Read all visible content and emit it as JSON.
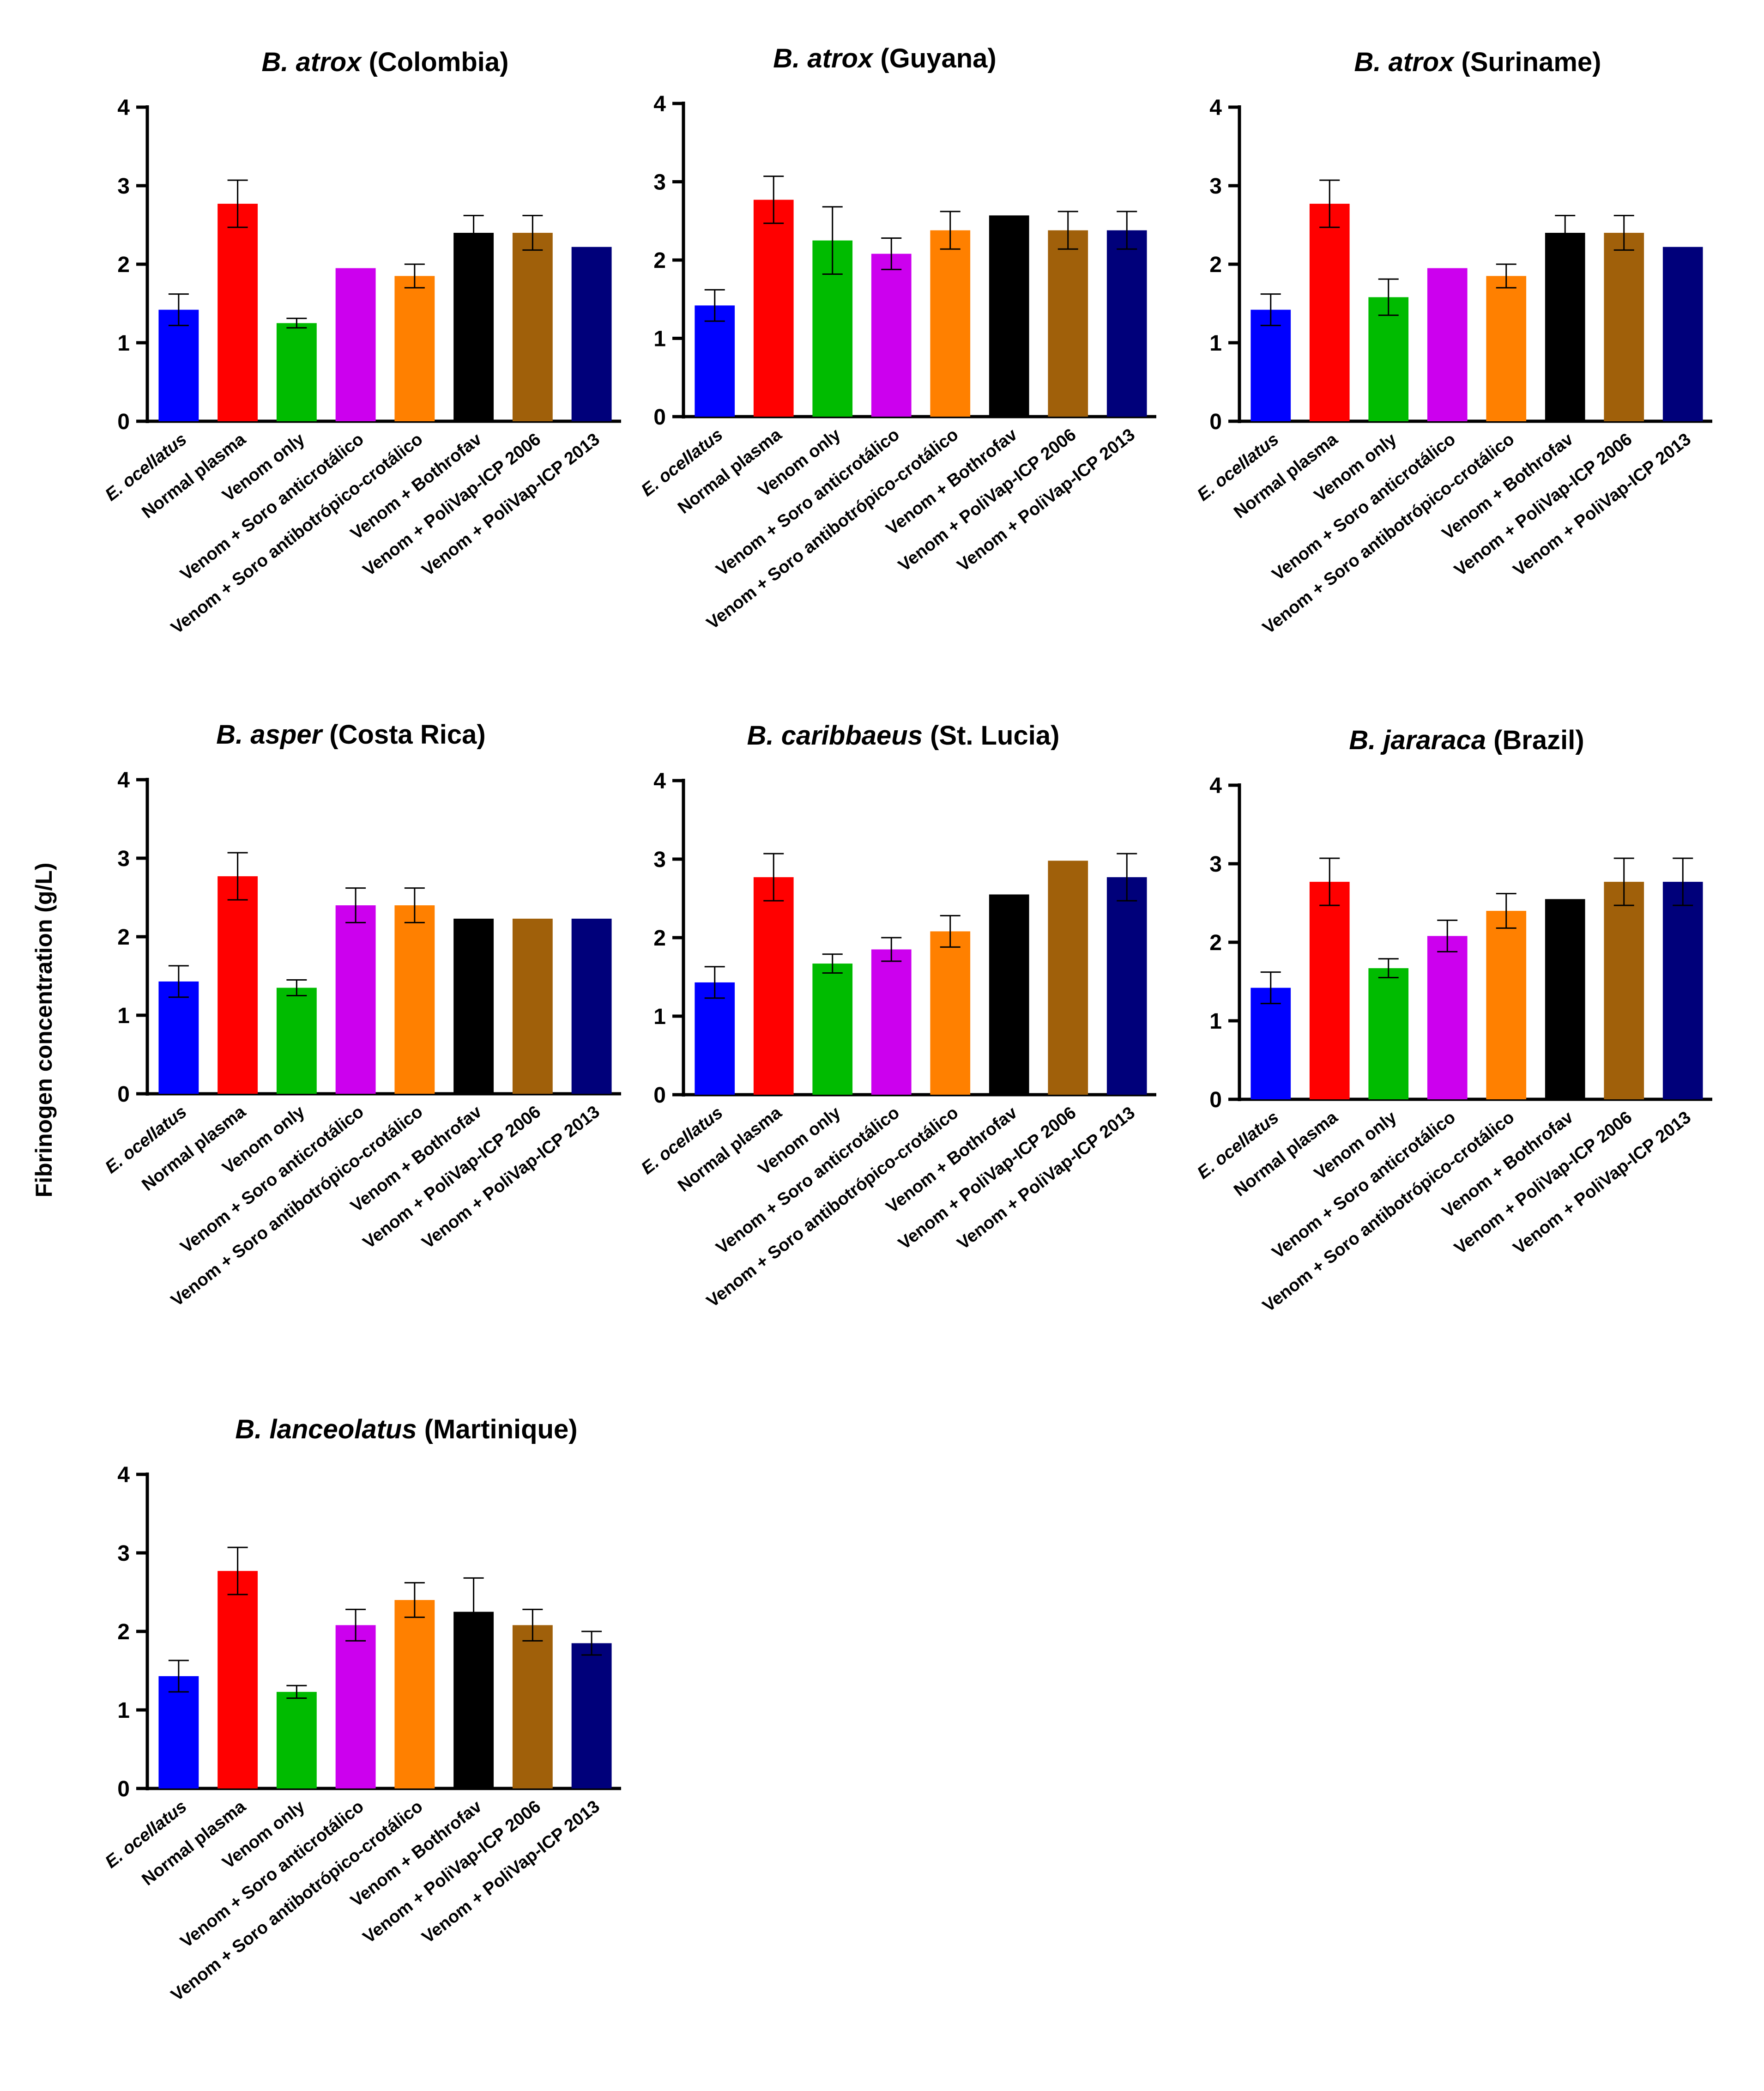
{
  "ylabel": "Fibrinogen concentration (g/L)",
  "categories": [
    {
      "label": "E. ocellatus",
      "italic": true,
      "color": "#0000ff"
    },
    {
      "label": "Normal plasma",
      "italic": false,
      "color": "#ff0000"
    },
    {
      "label": "Venom only",
      "italic": false,
      "color": "#00bb00"
    },
    {
      "label": "Venom + Soro anticrotálico",
      "italic": false,
      "color": "#cc00ee"
    },
    {
      "label": "Venom + Soro antibotrópico-crotálico",
      "italic": false,
      "color": "#ff8000"
    },
    {
      "label": "Venom + Bothrofav",
      "italic": false,
      "color": "#000000"
    },
    {
      "label": "Venom + PoliVap-ICP 2006",
      "italic": false,
      "color": "#a0600a"
    },
    {
      "label": "Venom + PoliVap-ICP 2013",
      "italic": false,
      "color": "#00007a"
    }
  ],
  "chart_data": [
    {
      "type": "bar",
      "title_species": "B. atrox",
      "title_region": "(Colombia)",
      "ylim": [
        0,
        4
      ],
      "yticks": [
        "0",
        "1",
        "2",
        "3",
        "4"
      ],
      "values": [
        1.42,
        2.77,
        1.25,
        1.95,
        1.85,
        2.4,
        2.4,
        2.22
      ],
      "errors": [
        0.2,
        0.3,
        0.06,
        0,
        0.15,
        0.22,
        0.22,
        0
      ]
    },
    {
      "type": "bar",
      "title_species": "B. atrox",
      "title_region": "(Guyana)",
      "ylim": [
        0,
        4
      ],
      "yticks": [
        "0",
        "1",
        "2",
        "3",
        "4"
      ],
      "values": [
        1.42,
        2.77,
        2.25,
        2.08,
        2.38,
        2.57,
        2.38,
        2.38
      ],
      "errors": [
        0.2,
        0.3,
        0.43,
        0.2,
        0.24,
        0,
        0.24,
        0.24
      ]
    },
    {
      "type": "bar",
      "title_species": "B. atrox",
      "title_region": "(Suriname)",
      "ylim": [
        0,
        4
      ],
      "yticks": [
        "0",
        "1",
        "2",
        "3",
        "4"
      ],
      "values": [
        1.42,
        2.77,
        1.58,
        1.95,
        1.85,
        2.4,
        2.4,
        2.22
      ],
      "errors": [
        0.2,
        0.3,
        0.23,
        0,
        0.15,
        0.22,
        0.22,
        0
      ]
    },
    {
      "type": "bar",
      "title_species": "B. asper",
      "title_region": "(Costa Rica)",
      "ylim": [
        0,
        4
      ],
      "yticks": [
        "0",
        "1",
        "2",
        "3",
        "4"
      ],
      "values": [
        1.43,
        2.77,
        1.35,
        2.4,
        2.4,
        2.23,
        2.23,
        2.23
      ],
      "errors": [
        0.2,
        0.3,
        0.1,
        0.22,
        0.22,
        0,
        0,
        0
      ]
    },
    {
      "type": "bar",
      "title_species": "B. caribbaeus",
      "title_region": "(St. Lucia)",
      "ylim": [
        0,
        4
      ],
      "yticks": [
        "0",
        "1",
        "2",
        "3",
        "4"
      ],
      "values": [
        1.43,
        2.77,
        1.67,
        1.85,
        2.08,
        2.55,
        2.98,
        2.77
      ],
      "errors": [
        0.2,
        0.3,
        0.12,
        0.15,
        0.2,
        0,
        0,
        0.3
      ]
    },
    {
      "type": "bar",
      "title_species": "B. jararaca",
      "title_region": "(Brazil)",
      "ylim": [
        0,
        4
      ],
      "yticks": [
        "0",
        "1",
        "2",
        "3",
        "4"
      ],
      "values": [
        1.42,
        2.77,
        1.67,
        2.08,
        2.4,
        2.55,
        2.77,
        2.77
      ],
      "errors": [
        0.2,
        0.3,
        0.12,
        0.2,
        0.22,
        0,
        0.3,
        0.3
      ]
    },
    {
      "type": "bar",
      "title_species": "B. lanceolatus",
      "title_region": "(Martinique)",
      "ylim": [
        0,
        4
      ],
      "yticks": [
        "0",
        "1",
        "2",
        "3",
        "4"
      ],
      "values": [
        1.43,
        2.77,
        1.23,
        2.08,
        2.4,
        2.25,
        2.08,
        1.85
      ],
      "errors": [
        0.2,
        0.3,
        0.08,
        0.2,
        0.22,
        0.43,
        0.2,
        0.15
      ]
    }
  ]
}
